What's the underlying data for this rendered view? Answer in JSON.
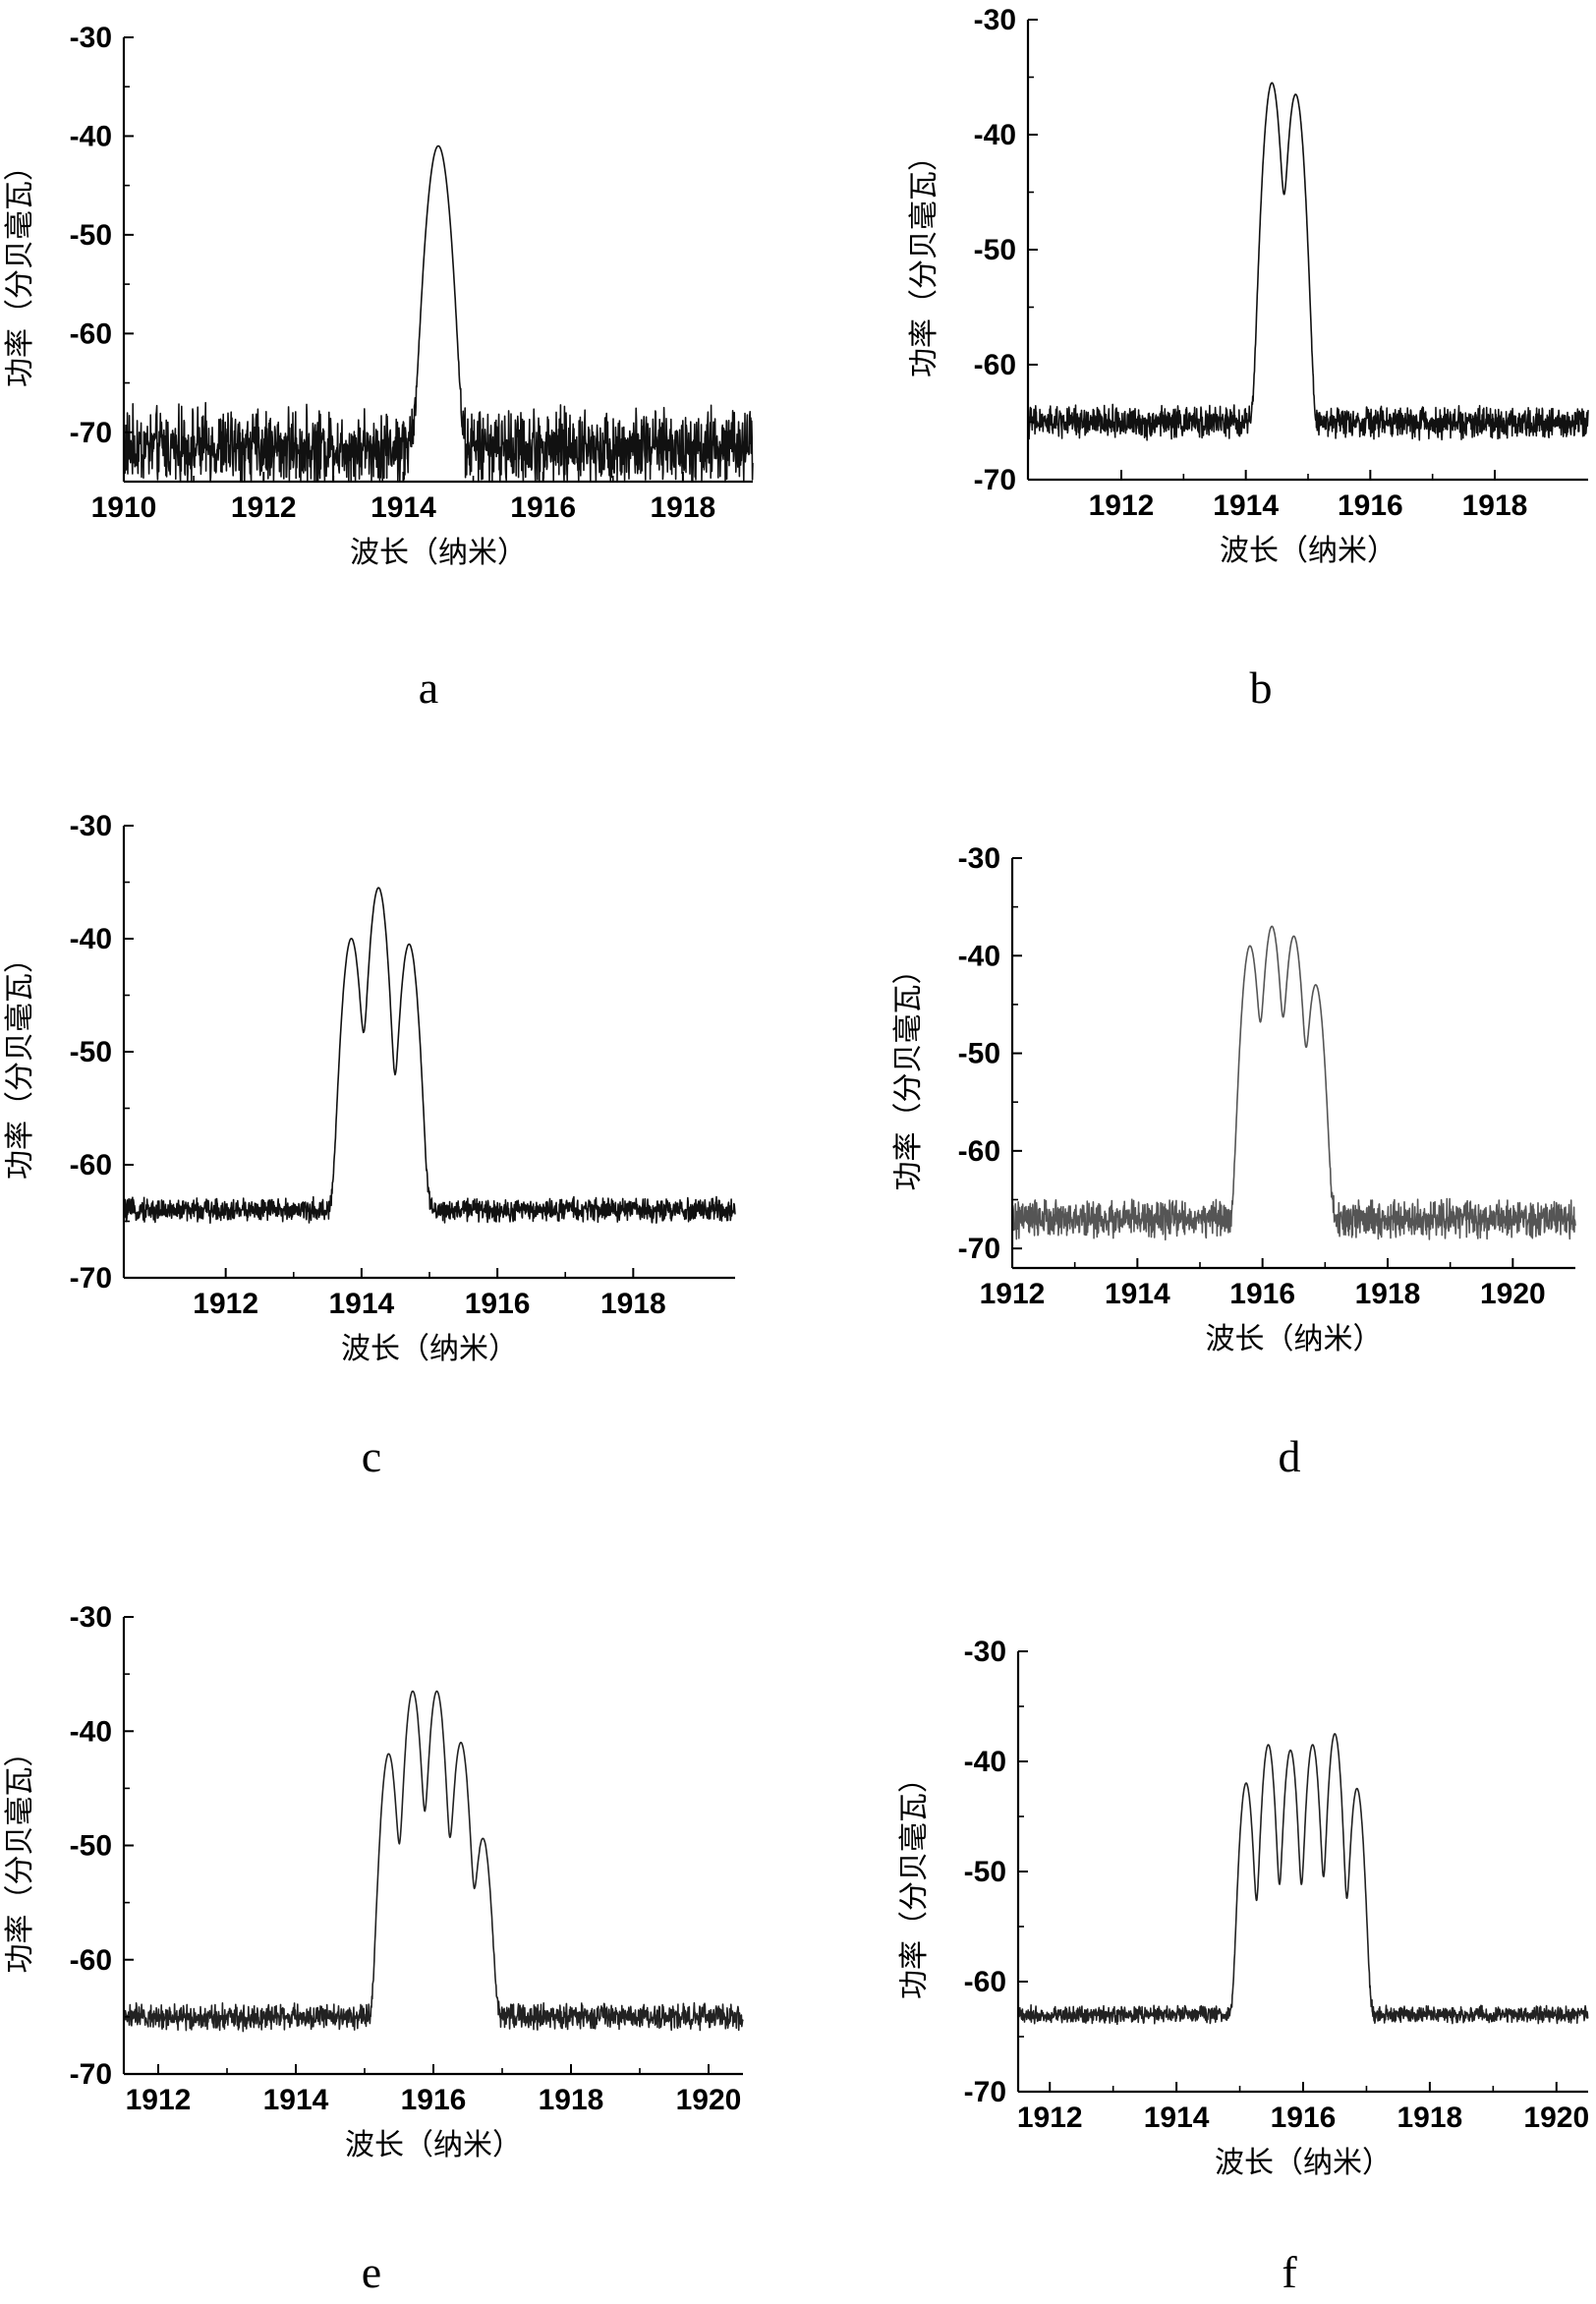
{
  "chart_data": [
    {
      "type": "line",
      "panel_label": "a",
      "xlabel": "波长（纳米）",
      "ylabel": "功率（分贝毫瓦）",
      "xlim": [
        1910,
        1919
      ],
      "ylim": [
        -75,
        -30
      ],
      "xticks": [
        1910,
        1912,
        1914,
        1916,
        1918
      ],
      "yticks": [
        -30,
        -40,
        -50,
        -60,
        -70
      ],
      "noise_floor": -71.5,
      "noise_amplitude": 4.5,
      "peaks": [
        {
          "x": 1914.5,
          "y": -41
        }
      ],
      "peak_width": 0.09,
      "stroke": "#111111"
    },
    {
      "type": "line",
      "panel_label": "b",
      "xlabel": "波长（纳米）",
      "ylabel": "功率（分贝毫瓦）",
      "xlim": [
        1910.5,
        1919.5
      ],
      "ylim": [
        -70,
        -30
      ],
      "xticks": [
        1912,
        1914,
        1916,
        1918
      ],
      "yticks": [
        -30,
        -40,
        -50,
        -60,
        -70
      ],
      "noise_floor": -65,
      "noise_amplitude": 1.6,
      "peaks": [
        {
          "x": 1914.42,
          "y": -35.5
        },
        {
          "x": 1914.8,
          "y": -36.5
        }
      ],
      "peak_width": 0.08,
      "stroke": "#111111"
    },
    {
      "type": "line",
      "panel_label": "c",
      "xlabel": "波长（纳米）",
      "ylabel": "功率（分贝毫瓦）",
      "xlim": [
        1910.5,
        1919.5
      ],
      "ylim": [
        -70,
        -30
      ],
      "xticks": [
        1912,
        1914,
        1916,
        1918
      ],
      "yticks": [
        -30,
        -40,
        -50,
        -60,
        -70
      ],
      "noise_floor": -64,
      "noise_amplitude": 1.2,
      "peaks": [
        {
          "x": 1913.85,
          "y": -40
        },
        {
          "x": 1914.25,
          "y": -35.5
        },
        {
          "x": 1914.7,
          "y": -40.5
        }
      ],
      "peak_width": 0.08,
      "stroke": "#111111"
    },
    {
      "type": "line",
      "panel_label": "d",
      "xlabel": "波长（纳米）",
      "ylabel": "功率（分贝毫瓦）",
      "xlim": [
        1912,
        1921
      ],
      "ylim": [
        -72,
        -30
      ],
      "xticks": [
        1912,
        1914,
        1916,
        1918,
        1920
      ],
      "yticks": [
        -30,
        -40,
        -50,
        -60,
        -70
      ],
      "noise_floor": -67,
      "noise_amplitude": 2.2,
      "peaks": [
        {
          "x": 1915.8,
          "y": -39
        },
        {
          "x": 1916.15,
          "y": -37
        },
        {
          "x": 1916.5,
          "y": -38
        },
        {
          "x": 1916.85,
          "y": -43
        }
      ],
      "peak_width": 0.075,
      "stroke": "#555555"
    },
    {
      "type": "line",
      "panel_label": "e",
      "xlabel": "波长（纳米）",
      "ylabel": "功率（分贝毫瓦）",
      "xlim": [
        1911.5,
        1920.5
      ],
      "ylim": [
        -70,
        -30
      ],
      "xticks": [
        1912,
        1914,
        1916,
        1918,
        1920
      ],
      "yticks": [
        -30,
        -40,
        -50,
        -60,
        -70
      ],
      "noise_floor": -65,
      "noise_amplitude": 1.3,
      "peaks": [
        {
          "x": 1915.35,
          "y": -42
        },
        {
          "x": 1915.7,
          "y": -36.5
        },
        {
          "x": 1916.05,
          "y": -36.5
        },
        {
          "x": 1916.4,
          "y": -41
        },
        {
          "x": 1916.72,
          "y": -49.5
        }
      ],
      "peak_width": 0.07,
      "stroke": "#222222"
    },
    {
      "type": "line",
      "panel_label": "f",
      "xlabel": "波长（纳米）",
      "ylabel": "功率（分贝毫瓦）",
      "xlim": [
        1911.5,
        1920.5
      ],
      "ylim": [
        -70,
        -30
      ],
      "xticks": [
        1912,
        1914,
        1916,
        1918,
        1920
      ],
      "yticks": [
        -30,
        -40,
        -50,
        -60,
        -70
      ],
      "noise_floor": -63,
      "noise_amplitude": 0.9,
      "peaks": [
        {
          "x": 1915.1,
          "y": -42
        },
        {
          "x": 1915.45,
          "y": -38.5
        },
        {
          "x": 1915.8,
          "y": -39
        },
        {
          "x": 1916.15,
          "y": -38.5
        },
        {
          "x": 1916.5,
          "y": -37.5
        },
        {
          "x": 1916.85,
          "y": -42.5
        }
      ],
      "peak_width": 0.065,
      "stroke": "#222222"
    }
  ]
}
